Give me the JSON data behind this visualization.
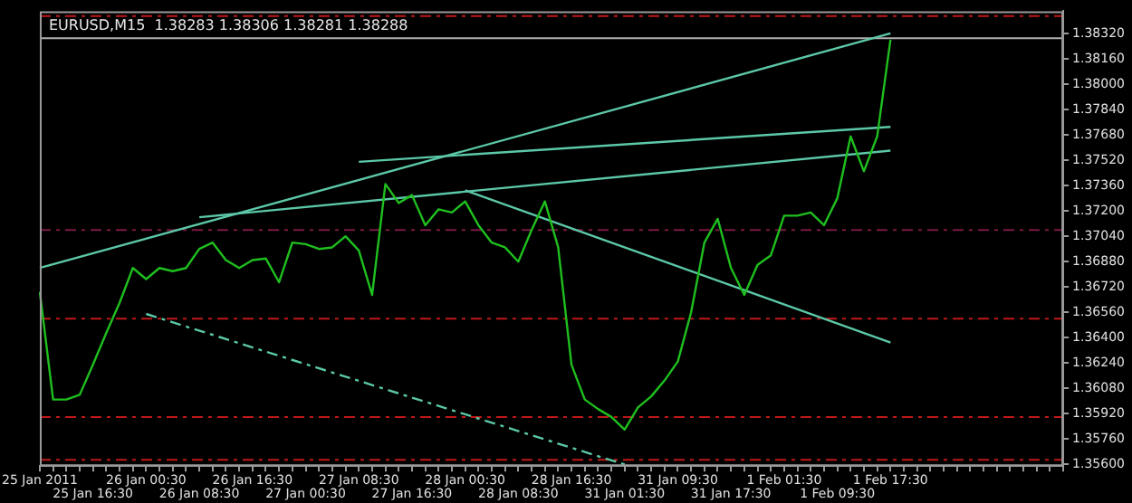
{
  "chart_data": {
    "type": "line",
    "title": "EURUSD,M15  1.38283 1.38306 1.38281 1.38288",
    "categories": [
      "25 Jan 2011",
      null,
      null,
      null,
      "25 Jan 16:30",
      null,
      null,
      null,
      "26 Jan 00:30",
      null,
      null,
      null,
      "26 Jan 08:30",
      null,
      null,
      null,
      "26 Jan 16:30",
      null,
      null,
      null,
      "27 Jan 00:30",
      null,
      null,
      null,
      "27 Jan 08:30",
      null,
      null,
      null,
      "27 Jan 16:30",
      null,
      null,
      null,
      "28 Jan 00:30",
      null,
      null,
      null,
      "28 Jan 08:30",
      null,
      null,
      null,
      "28 Jan 16:30",
      null,
      null,
      null,
      "31 Jan 01:30",
      null,
      null,
      null,
      "31 Jan 09:30",
      null,
      null,
      null,
      "31 Jan 17:30",
      null,
      null,
      null,
      "1 Feb 01:30",
      null,
      null,
      null,
      "1 Feb 09:30",
      null,
      null,
      null,
      "1 Feb 17:30",
      null,
      null,
      null,
      null,
      null,
      null,
      null,
      null,
      null,
      null,
      null,
      null,
      null
    ],
    "series": [
      {
        "color": "#1fbf1f",
        "values": [
          1.3669,
          1.3601,
          1.3601,
          1.3604,
          1.3623,
          1.3643,
          1.3662,
          1.3684,
          1.3677,
          1.3684,
          1.3682,
          1.3684,
          1.3696,
          1.37,
          1.3689,
          1.3684,
          1.3689,
          1.369,
          1.3675,
          1.37,
          1.3699,
          1.3696,
          1.3697,
          1.3704,
          1.3695,
          1.3667,
          1.3737,
          1.3725,
          1.373,
          1.3711,
          1.3721,
          1.3719,
          1.3726,
          1.3711,
          1.37,
          1.3697,
          1.3688,
          1.3708,
          1.3726,
          1.3697,
          1.3623,
          1.3601,
          1.3595,
          1.359,
          1.3582,
          1.3596,
          1.3603,
          1.3613,
          1.3625,
          1.3656,
          1.37,
          1.3715,
          1.3684,
          1.3667,
          1.3686,
          1.3692,
          1.3717,
          1.3717,
          1.3719,
          1.3711,
          1.3728,
          1.3767,
          1.3745,
          1.3767,
          1.3828,
          null,
          null,
          null,
          null,
          null,
          null,
          null,
          null,
          null,
          null,
          null,
          null,
          null
        ]
      },
      {
        "type": "line",
        "color": "#5cc8a8",
        "x": [
          "25 Jan 2011",
          "1 Feb 17:30"
        ],
        "values": [
          1.3684,
          1.3832
        ]
      },
      {
        "type": "line",
        "color": "#5cc8a8",
        "x": [
          "26 Jan 08:30",
          "1 Feb 17:30"
        ],
        "values": [
          1.3716,
          1.3758
        ]
      },
      {
        "type": "line",
        "color": "#5cc8a8",
        "x": [
          "27 Jan 08:30",
          "1 Feb 17:30"
        ],
        "values": [
          1.3751,
          1.3773
        ]
      },
      {
        "type": "line",
        "color": "#5cc8a8",
        "x": [
          "28 Jan 00:30",
          "1 Feb 17:30"
        ],
        "values": [
          1.3733,
          1.3637
        ]
      },
      {
        "type": "line",
        "color": "#5cc8a8",
        "line_style": "dashed",
        "x": [
          "26 Jan 00:30",
          "31 Jan 01:30"
        ],
        "values": [
          1.3655,
          1.356
        ]
      }
    ],
    "ylim": [
      1.3559,
      1.3846
    ],
    "yticks": [
      {
        "value": 1.356,
        "label": "1.35600"
      },
      {
        "value": 1.3576,
        "label": "1.35760"
      },
      {
        "value": 1.3592,
        "label": "1.35920"
      },
      {
        "value": 1.3608,
        "label": "1.36080"
      },
      {
        "value": 1.3624,
        "label": "1.36240"
      },
      {
        "value": 1.364,
        "label": "1.36400"
      },
      {
        "value": 1.3656,
        "label": "1.36560"
      },
      {
        "value": 1.3672,
        "label": "1.36720"
      },
      {
        "value": 1.3688,
        "label": "1.36880"
      },
      {
        "value": 1.3704,
        "label": "1.37040"
      },
      {
        "value": 1.372,
        "label": "1.37200"
      },
      {
        "value": 1.3736,
        "label": "1.37360"
      },
      {
        "value": 1.3752,
        "label": "1.37520"
      },
      {
        "value": 1.3768,
        "label": "1.37680"
      },
      {
        "value": 1.3784,
        "label": "1.37840"
      },
      {
        "value": 1.38,
        "label": "1.38000"
      },
      {
        "value": 1.3816,
        "label": "1.38160"
      },
      {
        "value": 1.3832,
        "label": "1.38320"
      }
    ],
    "grid": false,
    "legend": false,
    "marker": "none",
    "line_style": "solid",
    "ref_lines": [
      {
        "axis": "y",
        "value": 1.3843,
        "color": "#c01818",
        "line_style": "dashed"
      },
      {
        "axis": "y",
        "value": 1.3829,
        "color": "#b0b0b0",
        "line_style": "solid"
      },
      {
        "axis": "y",
        "value": 1.3708,
        "color": "#7a1a44",
        "line_style": "dashed"
      },
      {
        "axis": "y",
        "value": 1.3652,
        "color": "#c01818",
        "line_style": "dashed"
      },
      {
        "axis": "y",
        "value": 1.359,
        "color": "#c01818",
        "line_style": "dashed"
      },
      {
        "axis": "y",
        "value": 1.3563,
        "color": "#c01818",
        "line_style": "dashed"
      }
    ]
  }
}
